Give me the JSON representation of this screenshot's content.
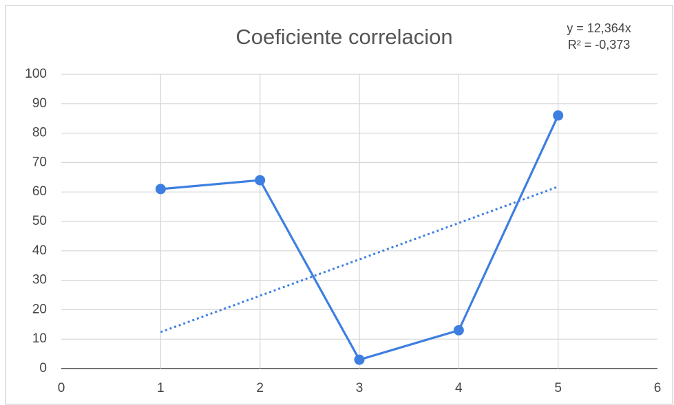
{
  "chart_data": {
    "type": "scatter",
    "title": "Coeficiente correlacion",
    "annotations": [
      "y = 12,364x",
      "R² = -0,373"
    ],
    "series": [
      {
        "color": "#3d7fe0",
        "x": [
          1,
          2,
          3,
          4,
          5
        ],
        "values": [
          61,
          64,
          3,
          13,
          86
        ]
      }
    ],
    "trendline": {
      "color": "#3d7fe0",
      "style": "dotted",
      "x": [
        1,
        5
      ],
      "values": [
        12.4,
        61.8
      ]
    },
    "xlim": [
      0,
      6
    ],
    "xticks": [
      0,
      1,
      2,
      3,
      4,
      5,
      6
    ],
    "ylim": [
      0,
      100
    ],
    "yticks": [
      0,
      10,
      20,
      30,
      40,
      50,
      60,
      70,
      80,
      90,
      100
    ],
    "grid": true
  }
}
